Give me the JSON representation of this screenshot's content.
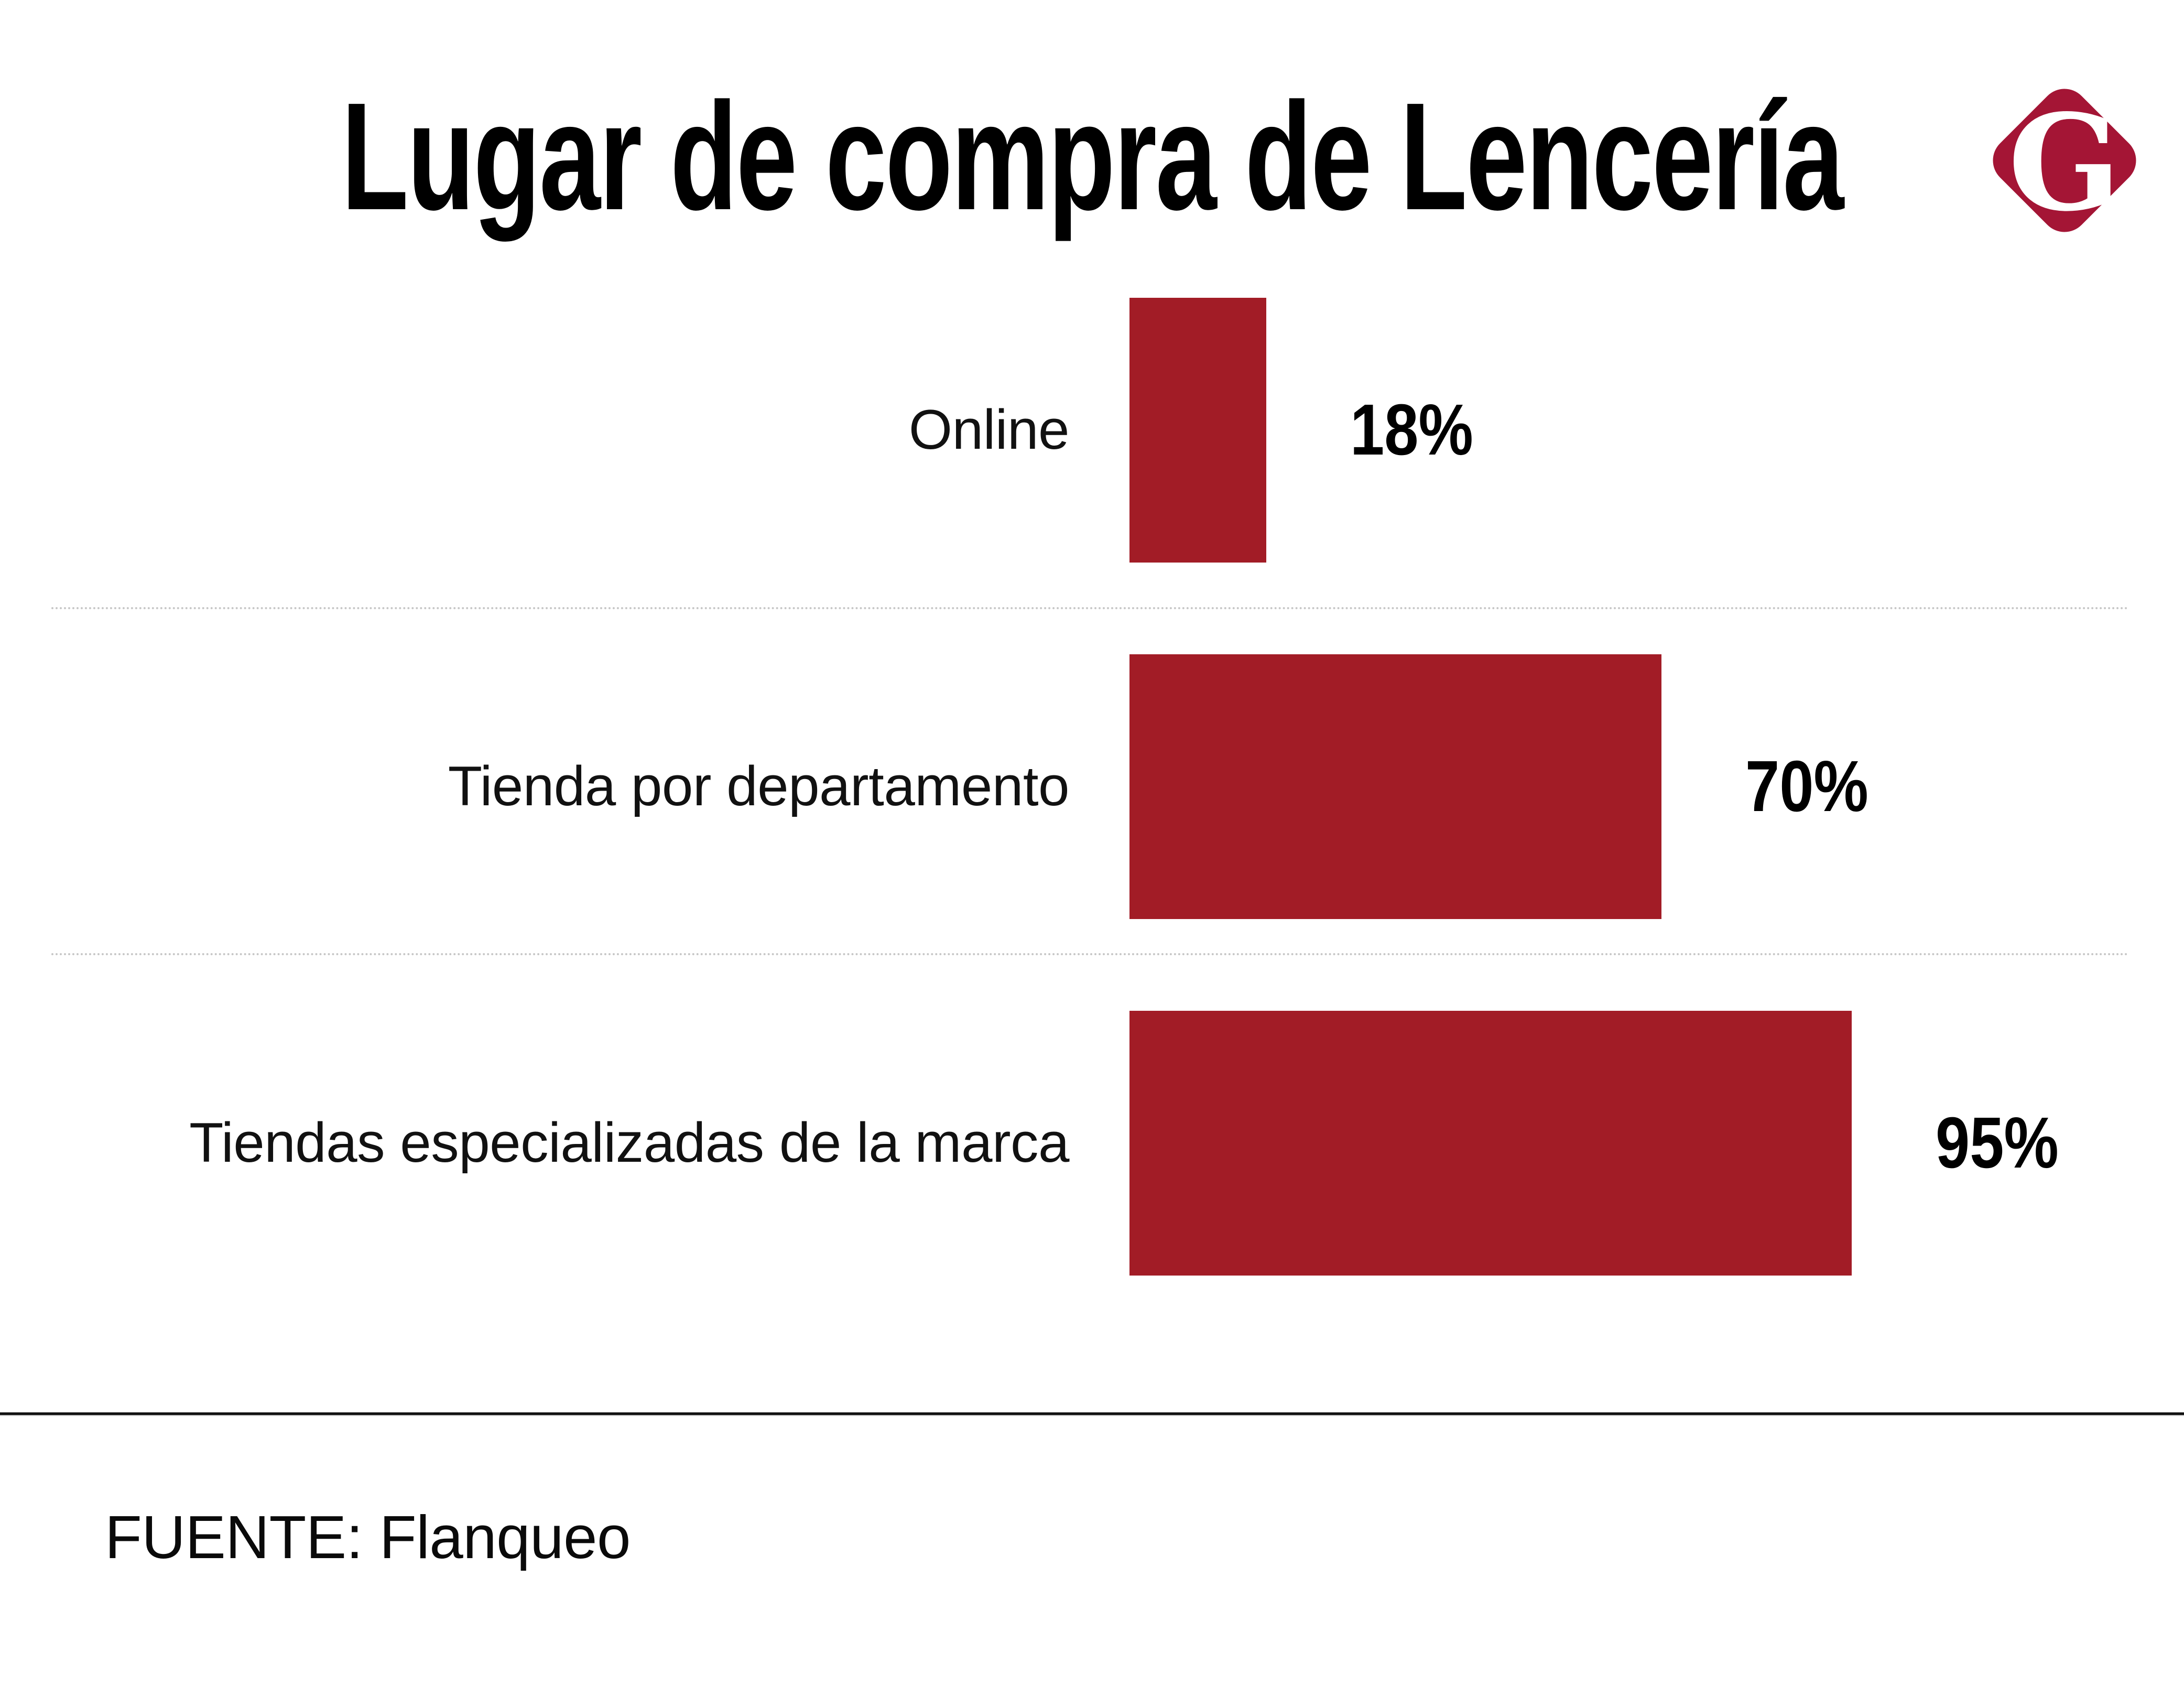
{
  "title": "Lugar de compra de Lencería",
  "logo": {
    "letter": "G",
    "color": "#A41535",
    "shape": "rounded-diamond"
  },
  "colors": {
    "bar": "#A21C26",
    "footer_rule": "#121212",
    "separator": "#C7C7C7",
    "background": "#FFFFFF",
    "text": "#000000"
  },
  "chart_data": {
    "type": "bar",
    "orientation": "horizontal",
    "title": "Lugar de compra de Lencería",
    "categories": [
      "Online",
      "Tienda por departamento",
      "Tiendas especializadas de la marca"
    ],
    "values": [
      18,
      70,
      95
    ],
    "value_labels": [
      "18%",
      "70%",
      "95%"
    ],
    "bar_color": "#A21C26",
    "xlim": [
      0,
      100
    ],
    "grid": false,
    "legend": false,
    "value_label_position": "right-of-bar",
    "category_label_position": "left-of-bar"
  },
  "source": {
    "text": "FUENTE: Flanqueo"
  }
}
